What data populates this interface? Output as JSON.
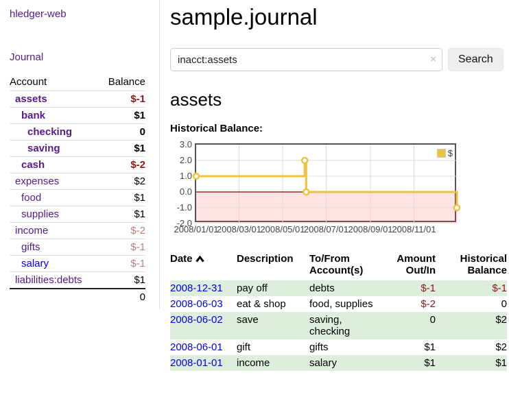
{
  "colors": {
    "link_purple": "#551a8b",
    "link_blue": "#0000ee",
    "negative_strong": "#8f1517",
    "negative_dim": "#bb7f7f",
    "stripe_green": "#ddeedd",
    "series_yellow": "#edc240",
    "chart_border": "#545454",
    "gridline": "#dcdcdc",
    "negative_region": "rgba(255,80,80,0.16)",
    "zero_line": "#8b0000"
  },
  "sidebar": {
    "brand": "hledger-web",
    "nav": [
      {
        "label": "Journal"
      }
    ],
    "accounts_table": {
      "headers": {
        "account": "Account",
        "balance": "Balance"
      },
      "rows": [
        {
          "account": "assets",
          "balance": "$-1",
          "level": 1,
          "bold": true,
          "balance_style": "negative-strong",
          "link_style": "purple"
        },
        {
          "account": "bank",
          "balance": "$1",
          "level": 2,
          "bold": true,
          "balance_style": "normal",
          "link_style": "purple"
        },
        {
          "account": "checking",
          "balance": "0",
          "level": 3,
          "bold": true,
          "balance_style": "normal",
          "link_style": "purple"
        },
        {
          "account": "saving",
          "balance": "$1",
          "level": 3,
          "bold": true,
          "balance_style": "normal",
          "link_style": "purple"
        },
        {
          "account": "cash",
          "balance": "$-2",
          "level": 2,
          "bold": true,
          "balance_style": "negative-strong",
          "link_style": "purple"
        },
        {
          "account": "expenses",
          "balance": "$2",
          "level": 1,
          "bold": false,
          "balance_style": "normal",
          "link_style": "purple"
        },
        {
          "account": "food",
          "balance": "$1",
          "level": 2,
          "bold": false,
          "balance_style": "normal",
          "link_style": "purple"
        },
        {
          "account": "supplies",
          "balance": "$1",
          "level": 2,
          "bold": false,
          "balance_style": "normal",
          "link_style": "purple"
        },
        {
          "account": "income",
          "balance": "$-2",
          "level": 1,
          "bold": false,
          "balance_style": "negative-dim",
          "link_style": "purple"
        },
        {
          "account": "gifts",
          "balance": "$-1",
          "level": 2,
          "bold": false,
          "balance_style": "negative-dim",
          "link_style": "purple"
        },
        {
          "account": "salary",
          "balance": "$-1",
          "level": 2,
          "bold": false,
          "balance_style": "negative-dim",
          "link_style": "blue"
        },
        {
          "account": "liabilities:debts",
          "balance": "$1",
          "level": 1,
          "bold": false,
          "balance_style": "normal",
          "link_style": "purple"
        }
      ],
      "total": "0"
    }
  },
  "header": {
    "title": "sample.journal"
  },
  "search": {
    "value": "inacct:assets",
    "clear_icon": "×",
    "button_label": "Search",
    "help_label": "?"
  },
  "account_page": {
    "title": "assets",
    "chart_label": "Historical Balance:"
  },
  "chart_data": {
    "type": "line",
    "title": "Historical Balance:",
    "step": true,
    "series": [
      {
        "name": "$",
        "color": "#edc240",
        "points": [
          {
            "date": "2008-01-01",
            "value": 1
          },
          {
            "date": "2008-06-01",
            "value": 2
          },
          {
            "date": "2008-06-03",
            "value": 0
          },
          {
            "date": "2008-12-31",
            "value": -1
          }
        ]
      }
    ],
    "x_range": {
      "start": "2008-01-01",
      "end": "2009-01-01"
    },
    "x_ticks": [
      {
        "date": "2008-01-01",
        "label": "2008/01/01"
      },
      {
        "date": "2008-03-01",
        "label": "2008/03/01"
      },
      {
        "date": "2008-05-01",
        "label": "2008/05/01"
      },
      {
        "date": "2008-07-01",
        "label": "2008/07/01"
      },
      {
        "date": "2008-09-01",
        "label": "2008/09/01"
      },
      {
        "date": "2008-11-01",
        "label": "2008/11/01"
      }
    ],
    "y_ticks": [
      {
        "value": 3,
        "label": "3.0"
      },
      {
        "value": 2,
        "label": "2.0"
      },
      {
        "value": 1,
        "label": "1.0"
      },
      {
        "value": 0,
        "label": "0.0"
      },
      {
        "value": -1,
        "label": "-1.0"
      },
      {
        "value": -2,
        "label": "-2.0"
      }
    ],
    "ylim": [
      -2,
      3
    ],
    "grid": true,
    "negative_region_shaded": true,
    "legend": {
      "label": "$",
      "position": "top-right"
    }
  },
  "register_table": {
    "headers": {
      "date": "Date",
      "description": "Description",
      "accounts": "To/From Account(s)",
      "amount": "Amount Out/In",
      "balance": "Historical Balance"
    },
    "sort": {
      "column": "date",
      "direction": "ascending"
    },
    "rows": [
      {
        "date": "2008-12-31",
        "description": "pay off",
        "accounts": "debts",
        "amount": "$-1",
        "balance": "$-1",
        "amount_negative": true,
        "balance_negative": true,
        "stripe": true
      },
      {
        "date": "2008-06-03",
        "description": "eat & shop",
        "accounts": "food, supplies",
        "amount": "$-2",
        "balance": "0",
        "amount_negative": true,
        "balance_negative": false,
        "stripe": false
      },
      {
        "date": "2008-06-02",
        "description": "save",
        "accounts": "saving, checking",
        "amount": "0",
        "balance": "$2",
        "amount_negative": false,
        "balance_negative": false,
        "stripe": true
      },
      {
        "date": "2008-06-01",
        "description": "gift",
        "accounts": "gifts",
        "amount": "$1",
        "balance": "$2",
        "amount_negative": false,
        "balance_negative": false,
        "stripe": false
      },
      {
        "date": "2008-01-01",
        "description": "income",
        "accounts": "salary",
        "amount": "$1",
        "balance": "$1",
        "amount_negative": false,
        "balance_negative": false,
        "stripe": true
      }
    ]
  }
}
